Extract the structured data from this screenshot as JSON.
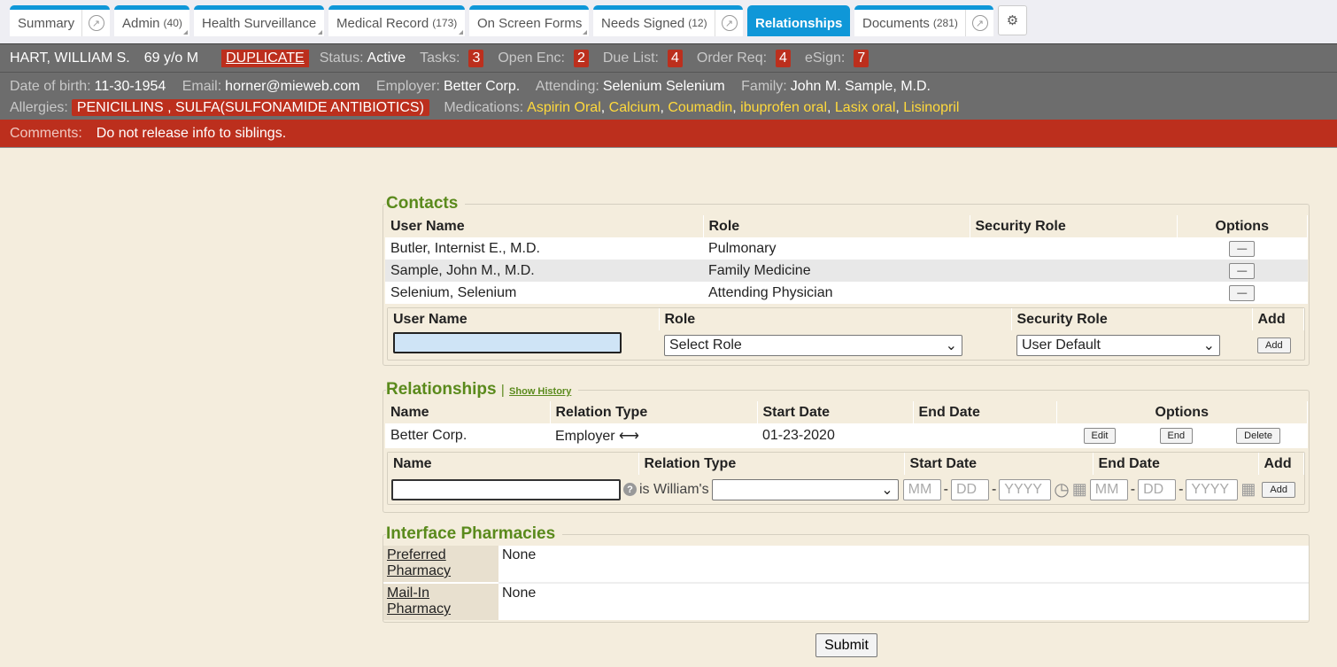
{
  "tabs": [
    {
      "label": "Summary",
      "count": ""
    },
    {
      "label": "Admin",
      "count": "(40)"
    },
    {
      "label": "Health Surveillance",
      "count": ""
    },
    {
      "label": "Medical Record",
      "count": "(173)"
    },
    {
      "label": "On Screen Forms",
      "count": ""
    },
    {
      "label": "Needs Signed",
      "count": "(12)"
    },
    {
      "label": "Relationships",
      "count": ""
    },
    {
      "label": "Documents",
      "count": "(281)"
    }
  ],
  "patient": {
    "name": "HART, WILLIAM S.",
    "age_sex": "69 y/o M",
    "flag": "DUPLICATE",
    "status_label": "Status:",
    "status": "Active",
    "tasks_label": "Tasks:",
    "tasks": "3",
    "open_enc_label": "Open Enc:",
    "open_enc": "2",
    "due_label": "Due List:",
    "due": "4",
    "order_label": "Order Req:",
    "order": "4",
    "esign_label": "eSign:",
    "esign": "7",
    "dob_label": "Date of birth:",
    "dob": "11-30-1954",
    "email_label": "Email:",
    "email": "horner@mieweb.com",
    "employer_label": "Employer:",
    "employer": "Better Corp.",
    "attending_label": "Attending:",
    "attending": "Selenium Selenium",
    "family_label": "Family:",
    "family": "John M. Sample, M.D.",
    "allergies_label": "Allergies:",
    "allergies": "PENICILLINS , SULFA(SULFONAMIDE ANTIBIOTICS)",
    "medications_label": "Medications:",
    "medications": [
      "Aspirin Oral",
      "Calcium",
      "Coumadin",
      "ibuprofen oral",
      "Lasix oral",
      "Lisinopril"
    ],
    "comments_label": "Comments:",
    "comments": "Do not release info to siblings."
  },
  "contacts": {
    "title": "Contacts",
    "headers": [
      "User Name",
      "Role",
      "Security Role",
      "Options"
    ],
    "rows": [
      {
        "name": "Butler, Internist E., M.D.",
        "role": "Pulmonary",
        "security": ""
      },
      {
        "name": "Sample, John M., M.D.",
        "role": "Family Medicine",
        "security": ""
      },
      {
        "name": "Selenium, Selenium",
        "role": "Attending Physician",
        "security": ""
      }
    ],
    "remove_label": "—",
    "add_headers": [
      "User Name",
      "Role",
      "Security Role",
      "Add"
    ],
    "user_value": "",
    "role_value": "Select Role",
    "security_value": "User Default",
    "add_label": "Add"
  },
  "relationships": {
    "title": "Relationships",
    "history": "Show History",
    "headers": [
      "Name",
      "Relation Type",
      "Start Date",
      "End Date",
      "Options"
    ],
    "rows": [
      {
        "name": "Better Corp.",
        "type": "Employer",
        "start": "01-23-2020",
        "end": ""
      }
    ],
    "edit": "Edit",
    "end_btn": "End",
    "delete": "Delete",
    "add_headers": [
      "Name",
      "Relation Type",
      "Start Date",
      "End Date",
      "Add"
    ],
    "is_label": "is William's",
    "mm": "MM",
    "dd": "DD",
    "yyyy": "YYYY",
    "add_label": "Add"
  },
  "pharmacies": {
    "title": "Interface Pharmacies",
    "rows": [
      {
        "label": "Preferred Pharmacy",
        "value": "None"
      },
      {
        "label": "Mail-In Pharmacy",
        "value": "None"
      }
    ]
  },
  "submit": "Submit"
}
